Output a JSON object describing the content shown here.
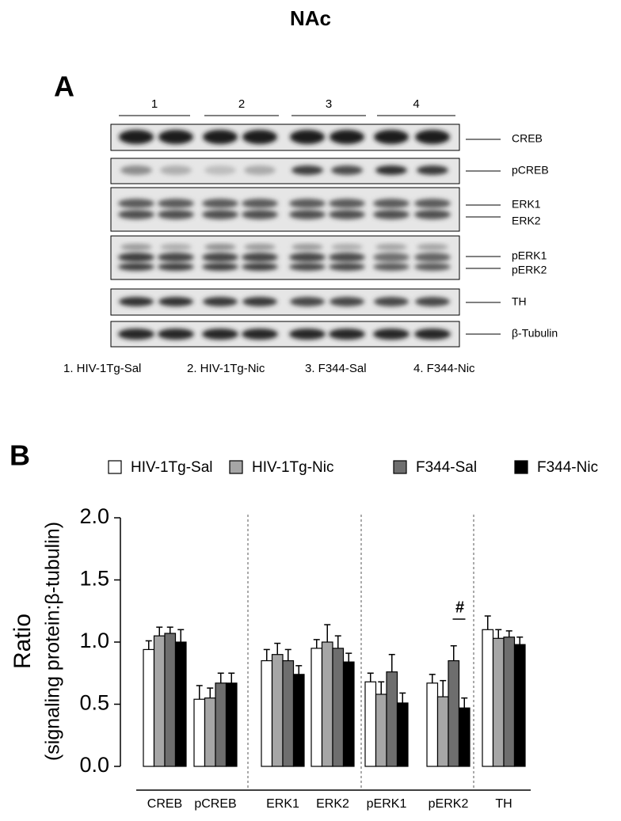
{
  "title": "NAc",
  "panel_a": {
    "letter": "A",
    "lane_groups": [
      "1",
      "2",
      "3",
      "4"
    ],
    "blot_labels": [
      "CREB",
      "pCREB",
      "ERK1",
      "ERK2",
      "pERK1",
      "pERK2",
      "TH",
      "β-Tubulin"
    ],
    "lane_legend": [
      "1. HIV-1Tg-Sal",
      "2. HIV-1Tg-Nic",
      "3. F344-Sal",
      "4.  F344-Nic"
    ]
  },
  "chart_data": {
    "type": "bar",
    "panel_letter": "B",
    "ylabel": [
      "Ratio",
      "(signaling protein:β-tubulin)"
    ],
    "categories": [
      "CREB",
      "pCREB",
      "ERK1",
      "ERK2",
      "pERK1",
      "pERK2",
      "TH"
    ],
    "series": [
      {
        "name": "HIV-1Tg-Sal",
        "color": "#ffffff",
        "values": [
          0.94,
          0.54,
          0.85,
          0.95,
          0.68,
          0.67,
          1.1
        ],
        "errors": [
          0.07,
          0.11,
          0.09,
          0.07,
          0.07,
          0.07,
          0.11
        ]
      },
      {
        "name": "HIV-1Tg-Nic",
        "color": "#a6a6a6",
        "values": [
          1.05,
          0.55,
          0.9,
          1.0,
          0.58,
          0.56,
          1.03
        ],
        "errors": [
          0.07,
          0.08,
          0.09,
          0.14,
          0.1,
          0.13,
          0.07
        ]
      },
      {
        "name": "F344-Sal",
        "color": "#6e6e6e",
        "values": [
          1.07,
          0.67,
          0.85,
          0.95,
          0.76,
          0.85,
          1.04
        ],
        "errors": [
          0.05,
          0.08,
          0.09,
          0.1,
          0.14,
          0.12,
          0.05
        ]
      },
      {
        "name": "F344-Nic",
        "color": "#000000",
        "values": [
          1.0,
          0.67,
          0.74,
          0.84,
          0.51,
          0.47,
          0.98
        ],
        "errors": [
          0.1,
          0.08,
          0.07,
          0.07,
          0.08,
          0.08,
          0.06
        ]
      }
    ],
    "ylim": [
      0,
      2
    ],
    "yticks": [
      {
        "value": 0,
        "label": "0.0"
      },
      {
        "value": 0.5,
        "label": "0.5"
      },
      {
        "value": 1,
        "label": "1.0"
      },
      {
        "value": 1.5,
        "label": "1.5"
      },
      {
        "value": 2,
        "label": "2.0"
      }
    ],
    "annotation": "#",
    "legend": "top"
  }
}
